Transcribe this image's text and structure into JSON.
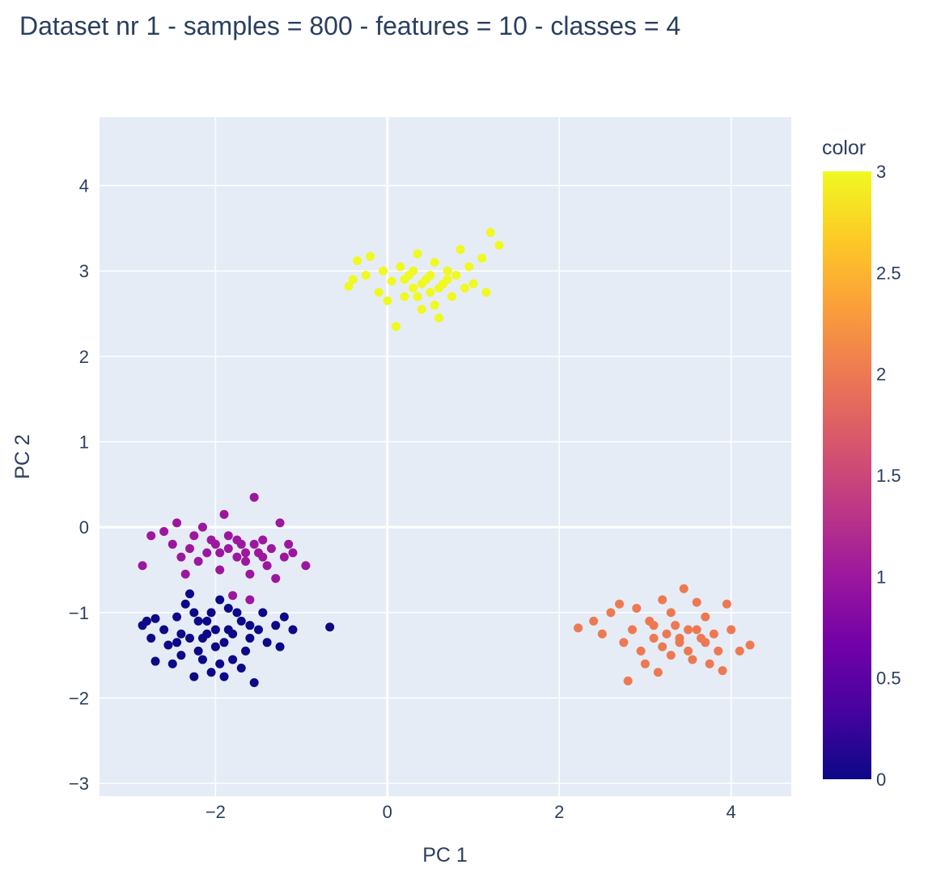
{
  "chart_data": {
    "type": "scatter",
    "title": "Dataset nr 1 - samples = 800 - features = 10 - classes = 4",
    "xlabel": "PC 1",
    "ylabel": "PC 2",
    "xlim": [
      -3.35,
      4.7
    ],
    "ylim": [
      -3.15,
      4.8
    ],
    "xticks": [
      -2,
      0,
      2,
      4
    ],
    "xtick_labels": [
      "−2",
      "0",
      "2",
      "4"
    ],
    "yticks": [
      -3,
      -2,
      -1,
      0,
      1,
      2,
      3,
      4
    ],
    "ytick_labels": [
      "−3",
      "−2",
      "−1",
      "0",
      "1",
      "2",
      "3",
      "4"
    ],
    "grid": true,
    "colorbar": {
      "title": "color",
      "range": [
        0,
        3
      ],
      "ticks": [
        0,
        0.5,
        1,
        1.5,
        2,
        2.5,
        3
      ],
      "tick_labels": [
        "0",
        "0.5",
        "1",
        "1.5",
        "2",
        "2.5",
        "3"
      ],
      "colorscale": [
        "#0d0887",
        "#46039f",
        "#7201a8",
        "#9c179e",
        "#bd3786",
        "#d8576b",
        "#ed7953",
        "#fb9f3a",
        "#fdca26",
        "#f0f921"
      ]
    },
    "clusters": [
      {
        "color_value": 0,
        "color": "#0d0887",
        "points": [
          [
            -2.85,
            -1.15
          ],
          [
            -2.8,
            -1.1
          ],
          [
            -2.7,
            -1.07
          ],
          [
            -2.75,
            -1.3
          ],
          [
            -2.7,
            -1.57
          ],
          [
            -2.6,
            -1.2
          ],
          [
            -2.55,
            -1.38
          ],
          [
            -2.5,
            -1.6
          ],
          [
            -2.45,
            -1.05
          ],
          [
            -2.4,
            -1.5
          ],
          [
            -2.35,
            -0.9
          ],
          [
            -2.3,
            -0.78
          ],
          [
            -2.25,
            -1.75
          ],
          [
            -2.2,
            -1.1
          ],
          [
            -2.15,
            -1.3
          ],
          [
            -2.1,
            -1.25
          ],
          [
            -2.05,
            -1.0
          ],
          [
            -2.0,
            -1.4
          ],
          [
            -1.95,
            -0.85
          ],
          [
            -1.9,
            -1.75
          ],
          [
            -1.85,
            -1.2
          ],
          [
            -1.8,
            -1.55
          ],
          [
            -1.7,
            -1.1
          ],
          [
            -1.65,
            -1.45
          ],
          [
            -1.6,
            -1.3
          ],
          [
            -1.55,
            -1.82
          ],
          [
            -1.5,
            -1.2
          ],
          [
            -1.45,
            -1.0
          ],
          [
            -1.4,
            -1.35
          ],
          [
            -1.3,
            -1.15
          ],
          [
            -1.25,
            -1.4
          ],
          [
            -1.2,
            -1.05
          ],
          [
            -1.1,
            -1.2
          ],
          [
            -0.67,
            -1.17
          ],
          [
            -2.3,
            -1.3
          ],
          [
            -2.2,
            -1.45
          ],
          [
            -2.1,
            -1.1
          ],
          [
            -2.0,
            -1.2
          ],
          [
            -1.9,
            -1.35
          ],
          [
            -1.8,
            -1.25
          ],
          [
            -1.75,
            -1.0
          ],
          [
            -2.4,
            -1.25
          ],
          [
            -2.45,
            -1.35
          ],
          [
            -1.95,
            -1.6
          ],
          [
            -1.7,
            -1.65
          ],
          [
            -2.15,
            -1.55
          ],
          [
            -2.05,
            -1.7
          ],
          [
            -2.25,
            -1.0
          ],
          [
            -1.85,
            -0.95
          ],
          [
            -1.6,
            -1.15
          ]
        ]
      },
      {
        "color_value": 1,
        "color": "#9c179e",
        "points": [
          [
            -2.85,
            -0.45
          ],
          [
            -2.75,
            -0.1
          ],
          [
            -2.6,
            -0.05
          ],
          [
            -2.5,
            -0.2
          ],
          [
            -2.45,
            0.05
          ],
          [
            -2.4,
            -0.35
          ],
          [
            -2.35,
            -0.55
          ],
          [
            -2.3,
            -0.25
          ],
          [
            -2.25,
            -0.1
          ],
          [
            -2.2,
            -0.4
          ],
          [
            -2.15,
            0.0
          ],
          [
            -2.1,
            -0.3
          ],
          [
            -2.0,
            -0.2
          ],
          [
            -1.95,
            -0.5
          ],
          [
            -1.9,
            0.15
          ],
          [
            -1.85,
            -0.1
          ],
          [
            -1.8,
            -0.8
          ],
          [
            -1.75,
            -0.35
          ],
          [
            -1.7,
            -0.2
          ],
          [
            -1.65,
            -0.4
          ],
          [
            -1.6,
            -0.55
          ],
          [
            -1.55,
            0.35
          ],
          [
            -1.5,
            -0.3
          ],
          [
            -1.45,
            -0.15
          ],
          [
            -1.4,
            -0.45
          ],
          [
            -1.35,
            -0.25
          ],
          [
            -1.3,
            -0.6
          ],
          [
            -1.25,
            0.05
          ],
          [
            -1.2,
            -0.35
          ],
          [
            -1.15,
            -0.2
          ],
          [
            -1.1,
            -0.3
          ],
          [
            -0.95,
            -0.45
          ],
          [
            -2.05,
            -0.15
          ],
          [
            -1.95,
            -0.3
          ],
          [
            -1.85,
            -0.25
          ],
          [
            -1.75,
            -0.15
          ],
          [
            -1.65,
            -0.3
          ],
          [
            -1.55,
            -0.2
          ],
          [
            -1.45,
            -0.35
          ],
          [
            -1.6,
            -0.85
          ]
        ]
      },
      {
        "color_value": 2,
        "color": "#ed7953",
        "points": [
          [
            2.22,
            -1.18
          ],
          [
            2.4,
            -1.1
          ],
          [
            2.5,
            -1.25
          ],
          [
            2.6,
            -1.0
          ],
          [
            2.7,
            -0.9
          ],
          [
            2.75,
            -1.35
          ],
          [
            2.8,
            -1.8
          ],
          [
            2.85,
            -1.2
          ],
          [
            2.9,
            -0.95
          ],
          [
            2.95,
            -1.45
          ],
          [
            3.0,
            -1.6
          ],
          [
            3.05,
            -1.1
          ],
          [
            3.1,
            -1.3
          ],
          [
            3.15,
            -1.7
          ],
          [
            3.2,
            -0.85
          ],
          [
            3.25,
            -1.25
          ],
          [
            3.3,
            -1.5
          ],
          [
            3.35,
            -1.15
          ],
          [
            3.4,
            -1.35
          ],
          [
            3.45,
            -0.72
          ],
          [
            3.5,
            -1.2
          ],
          [
            3.55,
            -1.55
          ],
          [
            3.6,
            -0.88
          ],
          [
            3.65,
            -1.3
          ],
          [
            3.7,
            -1.05
          ],
          [
            3.75,
            -1.6
          ],
          [
            3.8,
            -1.25
          ],
          [
            3.85,
            -1.45
          ],
          [
            3.9,
            -1.68
          ],
          [
            3.95,
            -0.9
          ],
          [
            4.0,
            -1.2
          ],
          [
            4.1,
            -1.45
          ],
          [
            4.22,
            -1.38
          ],
          [
            3.1,
            -1.15
          ],
          [
            3.2,
            -1.4
          ],
          [
            3.3,
            -1.0
          ],
          [
            3.4,
            -1.3
          ],
          [
            3.5,
            -1.45
          ],
          [
            3.6,
            -1.2
          ],
          [
            3.7,
            -1.35
          ]
        ]
      },
      {
        "color_value": 3,
        "color": "#f0f921",
        "points": [
          [
            -0.45,
            2.82
          ],
          [
            -0.4,
            2.9
          ],
          [
            -0.35,
            3.12
          ],
          [
            -0.25,
            2.95
          ],
          [
            -0.2,
            3.17
          ],
          [
            -0.1,
            2.75
          ],
          [
            -0.05,
            3.0
          ],
          [
            0.0,
            2.65
          ],
          [
            0.05,
            2.88
          ],
          [
            0.1,
            2.35
          ],
          [
            0.15,
            3.05
          ],
          [
            0.2,
            2.7
          ],
          [
            0.25,
            2.95
          ],
          [
            0.3,
            2.8
          ],
          [
            0.35,
            3.2
          ],
          [
            0.4,
            2.55
          ],
          [
            0.45,
            2.9
          ],
          [
            0.5,
            2.75
          ],
          [
            0.55,
            3.1
          ],
          [
            0.6,
            2.45
          ],
          [
            0.65,
            2.85
          ],
          [
            0.7,
            3.0
          ],
          [
            0.75,
            2.7
          ],
          [
            0.8,
            2.95
          ],
          [
            0.85,
            3.25
          ],
          [
            0.9,
            2.8
          ],
          [
            0.95,
            3.05
          ],
          [
            1.0,
            2.85
          ],
          [
            1.1,
            3.15
          ],
          [
            1.15,
            2.75
          ],
          [
            1.2,
            3.45
          ],
          [
            1.3,
            3.3
          ],
          [
            0.2,
            2.9
          ],
          [
            0.3,
            3.0
          ],
          [
            0.4,
            2.85
          ],
          [
            0.5,
            2.95
          ],
          [
            0.6,
            2.8
          ],
          [
            0.7,
            2.9
          ],
          [
            0.35,
            2.7
          ],
          [
            0.55,
            2.6
          ]
        ]
      }
    ]
  }
}
